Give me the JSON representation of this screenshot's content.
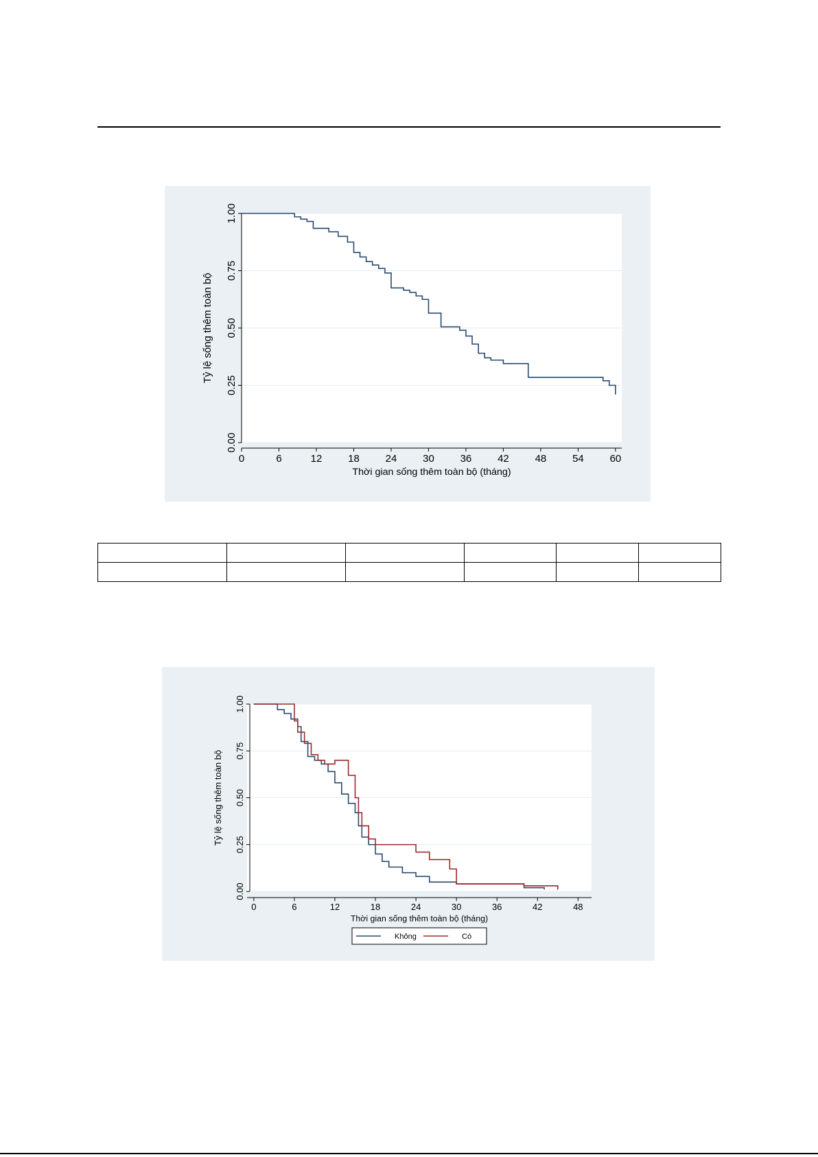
{
  "chart_data": [
    {
      "type": "line",
      "step": true,
      "xlabel": "Thời gian sống thêm toàn bộ (tháng)",
      "ylabel": "Tỷ lệ sống thêm toàn bộ",
      "xlim": [
        0,
        61
      ],
      "ylim": [
        0,
        1
      ],
      "xticks": [
        "0",
        "6",
        "12",
        "18",
        "24",
        "30",
        "36",
        "42",
        "48",
        "54",
        "60"
      ],
      "yticks": [
        "0.00",
        "0.25",
        "0.50",
        "0.75",
        "1.00"
      ],
      "grid": true,
      "colors": {
        "panel": "#eaf0f4",
        "plot": "#ffffff",
        "grid": "#e4ecf0",
        "series": [
          "#2b4a6e"
        ]
      },
      "series": [
        {
          "x": [
            0,
            8.5,
            9.5,
            10.5,
            11.5,
            14,
            15.5,
            17,
            18,
            19,
            20,
            21,
            22,
            23,
            24,
            26,
            27,
            28,
            29,
            30,
            32,
            35,
            36,
            37,
            38,
            39,
            40,
            42,
            46,
            58,
            59,
            60
          ],
          "y": [
            1.0,
            0.985,
            0.975,
            0.965,
            0.935,
            0.92,
            0.9,
            0.875,
            0.83,
            0.81,
            0.79,
            0.775,
            0.76,
            0.74,
            0.675,
            0.665,
            0.655,
            0.64,
            0.625,
            0.565,
            0.505,
            0.49,
            0.465,
            0.43,
            0.39,
            0.37,
            0.36,
            0.345,
            0.285,
            0.27,
            0.25,
            0.21
          ]
        }
      ]
    },
    {
      "type": "line",
      "step": true,
      "xlabel": "Thời gian sống thêm toàn bộ (tháng)",
      "ylabel": "Tỷ lệ sống thêm toàn bộ",
      "xlim": [
        -1,
        50
      ],
      "ylim": [
        0,
        1
      ],
      "xticks": [
        "0",
        "6",
        "12",
        "18",
        "24",
        "30",
        "36",
        "42",
        "48"
      ],
      "yticks": [
        "0.00",
        "0.25",
        "0.50",
        "0.75",
        "1.00"
      ],
      "grid": true,
      "legend_position": "bottom",
      "colors": {
        "panel": "#eaf0f4",
        "plot": "#ffffff",
        "grid": "#e4ecf0",
        "series": [
          "#2b4a6e",
          "#9b2a2a"
        ]
      },
      "series": [
        {
          "name": "Không",
          "x": [
            0,
            3.5,
            4.5,
            5.5,
            6.5,
            7,
            8,
            9,
            10,
            11,
            12,
            13,
            14,
            15,
            15.5,
            16,
            17,
            18,
            19,
            20,
            22,
            24,
            26,
            30,
            40,
            43
          ],
          "y": [
            1.0,
            0.97,
            0.95,
            0.92,
            0.88,
            0.8,
            0.72,
            0.7,
            0.68,
            0.64,
            0.58,
            0.52,
            0.47,
            0.42,
            0.35,
            0.29,
            0.25,
            0.2,
            0.16,
            0.13,
            0.1,
            0.08,
            0.05,
            0.04,
            0.02,
            0.01
          ]
        },
        {
          "name": "Có",
          "x": [
            0,
            6,
            6.5,
            7.5,
            8.5,
            9.5,
            10.5,
            12,
            14,
            15,
            15.5,
            16,
            17,
            18,
            24,
            26,
            29,
            30,
            40,
            45
          ],
          "y": [
            1.0,
            0.91,
            0.85,
            0.79,
            0.73,
            0.7,
            0.68,
            0.7,
            0.62,
            0.5,
            0.42,
            0.35,
            0.28,
            0.25,
            0.21,
            0.17,
            0.12,
            0.04,
            0.03,
            0.01
          ]
        }
      ],
      "legend": [
        "Không",
        "Có"
      ]
    }
  ]
}
